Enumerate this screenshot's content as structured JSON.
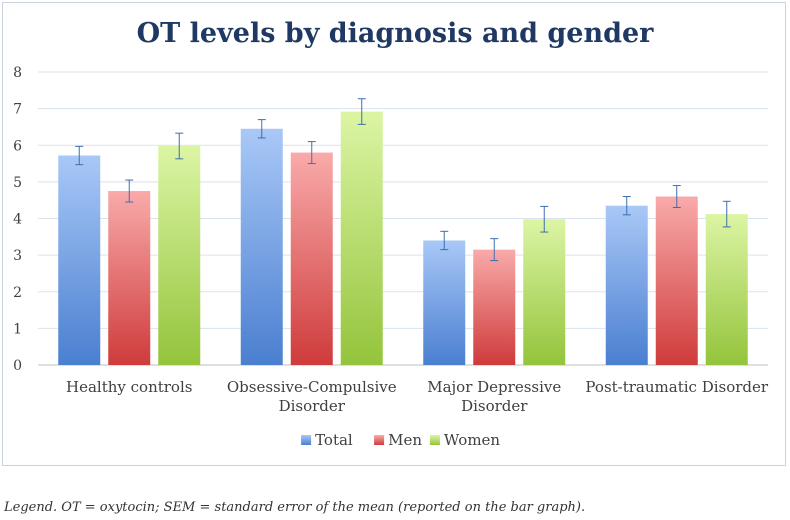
{
  "chart_data": {
    "type": "bar",
    "title": "OT levels by diagnosis and gender",
    "xlabel": "",
    "ylabel": "",
    "ylim": [
      0,
      8
    ],
    "yticks": [
      0,
      1,
      2,
      3,
      4,
      5,
      6,
      7,
      8
    ],
    "grid": true,
    "legend_position": "bottom",
    "categories": [
      [
        "Healthy controls"
      ],
      [
        "Obsessive-Compulsive",
        "Disorder"
      ],
      [
        "Major Depressive",
        "Disorder"
      ],
      [
        "Post-traumatic Disorder"
      ]
    ],
    "series": [
      {
        "name": "Total",
        "color": "#4a7fd0",
        "color_light": "#a9c8f7",
        "values": [
          5.72,
          6.45,
          3.4,
          4.35
        ],
        "sem": [
          0.25,
          0.25,
          0.25,
          0.25
        ]
      },
      {
        "name": "Men",
        "color": "#cf3b3b",
        "color_light": "#f9aaaa",
        "values": [
          4.75,
          5.8,
          3.15,
          4.6
        ],
        "sem": [
          0.3,
          0.3,
          0.3,
          0.3
        ]
      },
      {
        "name": "Women",
        "color": "#94c43c",
        "color_light": "#dcf5a4",
        "values": [
          5.98,
          6.92,
          3.98,
          4.12
        ],
        "sem": [
          0.35,
          0.35,
          0.35,
          0.35
        ]
      }
    ]
  },
  "caption": "Legend. OT = oxytocin; SEM = standard error of the mean (reported on the bar graph)."
}
